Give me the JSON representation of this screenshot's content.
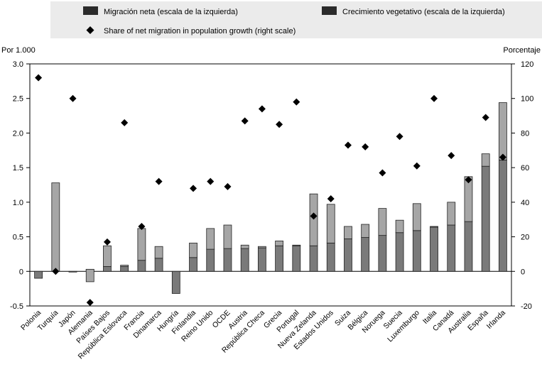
{
  "chart_data": {
    "type": "bar",
    "units": {
      "left": "Por 1.000",
      "right": "Porcentaje"
    },
    "legend": {
      "placement": "top",
      "entries": {
        "migration": "Migración neta (escala de la izquierda)",
        "natural": "Crecimiento vegetativo (escala de la izquierda)",
        "share": "Share of net migration in population growth (right scale)"
      }
    },
    "y_left": {
      "min": -0.5,
      "max": 3.0,
      "ticks": [
        "3.0",
        "2.5",
        "2.0",
        "1.5",
        "1.0",
        "0.5",
        "0",
        "-0.5"
      ]
    },
    "y_right": {
      "min": -20,
      "max": 120,
      "ticks": [
        "120",
        "100",
        "80",
        "60",
        "40",
        "20",
        "0",
        "-20"
      ]
    },
    "categories": [
      "Polonia",
      "Turquía",
      "Japón",
      "Alemania",
      "Países Bajos",
      "República Eslovaca",
      "Francia",
      "Dinamarca",
      "Hungría",
      "Finlandia",
      "Reino Unido",
      "OCDE",
      "Austria",
      "República Checa",
      "Grecia",
      "Portugal",
      "Nueva Zelanda",
      "Estados Unidos",
      "Suiza",
      "Bélgica",
      "Noruega",
      "Suecia",
      "Luxemburgo",
      "Italia",
      "Canadá",
      "Australia",
      "España",
      "Irlanda"
    ],
    "series": [
      {
        "name": "Migración neta (escala de la izquierda)",
        "axis": "left",
        "values": [
          -0.1,
          0.0,
          0.0,
          0.03,
          0.07,
          0.07,
          0.16,
          0.19,
          -0.32,
          0.2,
          0.32,
          0.33,
          0.33,
          0.34,
          0.37,
          0.37,
          0.37,
          0.41,
          0.47,
          0.49,
          0.52,
          0.56,
          0.59,
          0.64,
          0.67,
          0.72,
          1.52,
          1.61
        ]
      },
      {
        "name": "Crecimiento vegetativo (escala de la izquierda)",
        "axis": "left",
        "values": [
          0.0,
          1.28,
          -0.01,
          -0.18,
          0.3,
          0.02,
          0.46,
          0.17,
          0.0,
          0.21,
          0.3,
          0.34,
          0.05,
          0.02,
          0.07,
          0.01,
          0.75,
          0.56,
          0.18,
          0.19,
          0.39,
          0.18,
          0.39,
          0.01,
          0.33,
          0.65,
          0.18,
          0.83
        ]
      },
      {
        "name": "Share of net migration in population growth (right scale)",
        "axis": "right",
        "values": [
          112,
          0,
          100,
          -18,
          17,
          86,
          26,
          52,
          null,
          48,
          52,
          49,
          87,
          94,
          85,
          98,
          32,
          42,
          73,
          72,
          57,
          78,
          61,
          100,
          67,
          53,
          89,
          66
        ]
      }
    ],
    "grid": false
  }
}
